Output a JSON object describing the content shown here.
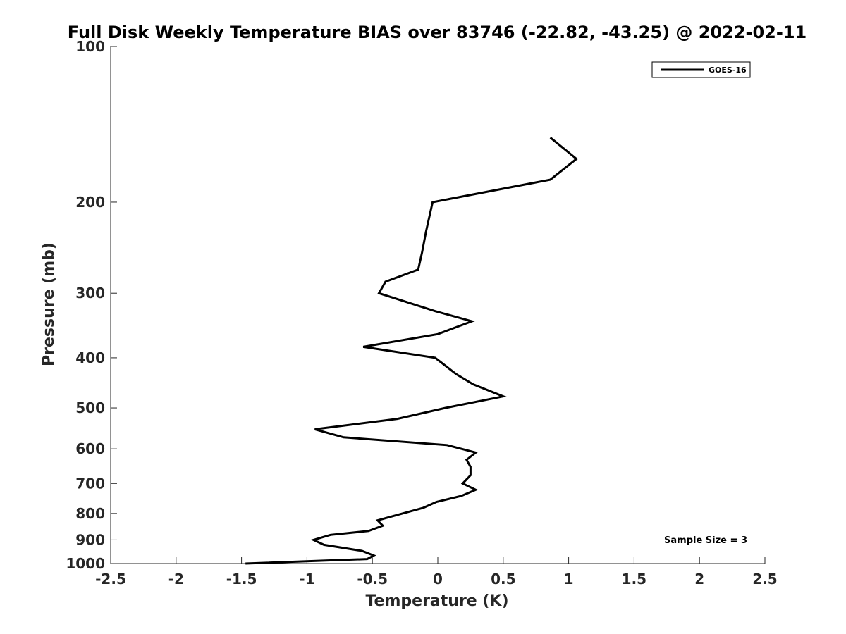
{
  "chart_data": {
    "type": "line",
    "title": "Full Disk Weekly Temperature BIAS over 83746 (-22.82, -43.25) @ 2022-02-11",
    "xlabel": "Temperature (K)",
    "ylabel": "Pressure (mb)",
    "xlim": [
      -2.5,
      2.5
    ],
    "ylim": [
      1000,
      100
    ],
    "yscale": "log",
    "y_reversed": true,
    "xticks": [
      -2.5,
      -2,
      -1.5,
      -1,
      -0.5,
      0,
      0.5,
      1,
      1.5,
      2,
      2.5
    ],
    "xtick_labels": [
      "-2.5",
      "-2",
      "-1.5",
      "-1",
      "-0.5",
      "0",
      "0.5",
      "1",
      "1.5",
      "2",
      "2.5"
    ],
    "yticks": [
      100,
      200,
      300,
      400,
      500,
      600,
      700,
      800,
      900,
      1000
    ],
    "ytick_labels": [
      "100",
      "200",
      "300",
      "400",
      "500",
      "600",
      "700",
      "800",
      "900",
      "1000"
    ],
    "grid": false,
    "legend_position": "top-right",
    "series": [
      {
        "name": "GOES-16",
        "color": "#000000",
        "points": [
          [
            0.86,
            150
          ],
          [
            1.06,
            165
          ],
          [
            0.86,
            181
          ],
          [
            -0.04,
            200
          ],
          [
            -0.09,
            228
          ],
          [
            -0.12,
            250
          ],
          [
            -0.15,
            270
          ],
          [
            -0.4,
            285
          ],
          [
            -0.45,
            300
          ],
          [
            -0.02,
            325
          ],
          [
            0.26,
            340
          ],
          [
            0.0,
            360
          ],
          [
            -0.57,
            381
          ],
          [
            -0.02,
            400
          ],
          [
            0.14,
            430
          ],
          [
            0.27,
            450
          ],
          [
            0.5,
            475
          ],
          [
            0.06,
            500
          ],
          [
            -0.31,
            525
          ],
          [
            -0.94,
            550
          ],
          [
            -0.72,
            570
          ],
          [
            0.07,
            590
          ],
          [
            0.29,
            610
          ],
          [
            0.22,
            630
          ],
          [
            0.25,
            650
          ],
          [
            0.25,
            675
          ],
          [
            0.19,
            700
          ],
          [
            0.29,
            720
          ],
          [
            0.18,
            740
          ],
          [
            -0.01,
            760
          ],
          [
            -0.11,
            780
          ],
          [
            -0.27,
            800
          ],
          [
            -0.46,
            825
          ],
          [
            -0.42,
            845
          ],
          [
            -0.53,
            865
          ],
          [
            -0.82,
            880
          ],
          [
            -0.95,
            900
          ],
          [
            -0.87,
            920
          ],
          [
            -0.58,
            945
          ],
          [
            -0.49,
            965
          ],
          [
            -0.54,
            980
          ],
          [
            -1.47,
            1000
          ]
        ]
      }
    ],
    "annotation": "Sample Size = 3"
  }
}
